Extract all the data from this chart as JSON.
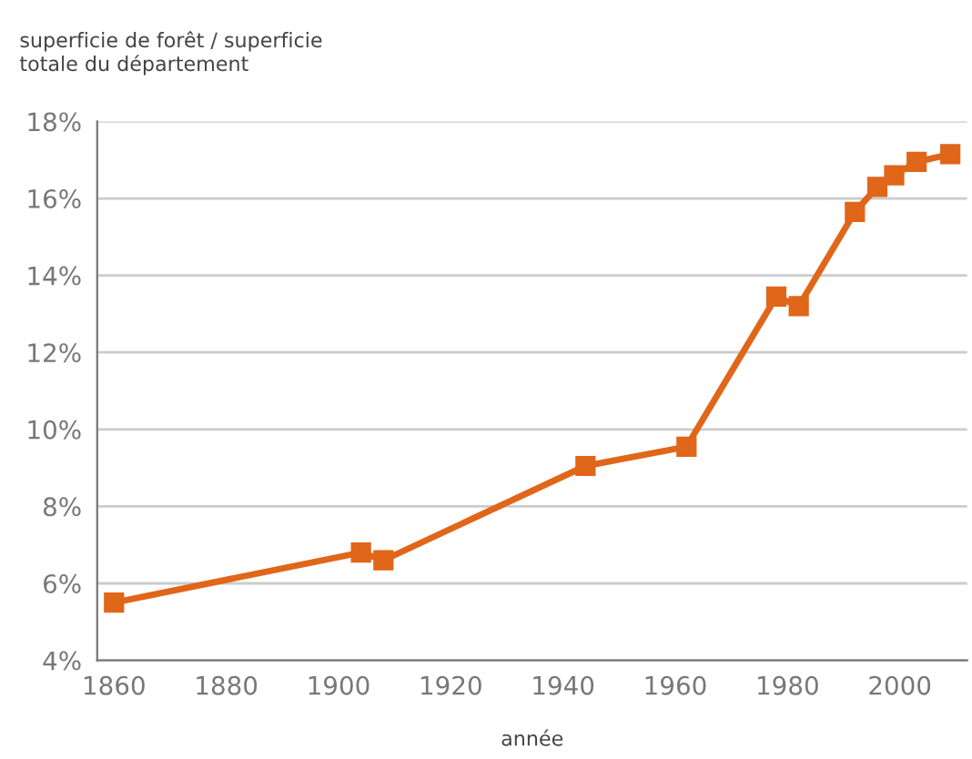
{
  "chart_data": {
    "type": "line",
    "ylabel": "superficie de forêt / superficie\ntotale du département",
    "xlabel": "année",
    "x": [
      1860,
      1904,
      1908,
      1944,
      1962,
      1978,
      1982,
      1992,
      1996,
      1999,
      2003,
      2009
    ],
    "series": [
      {
        "color": "#e0661a",
        "values": [
          5.5,
          6.8,
          6.6,
          9.05,
          9.55,
          13.45,
          13.2,
          15.65,
          16.3,
          16.6,
          16.95,
          17.15
        ]
      }
    ],
    "marker": "square",
    "line_style": "solid",
    "grid": "y",
    "legend": false,
    "xlim": [
      1857,
      2012
    ],
    "xticks": [
      1860,
      1880,
      1900,
      1920,
      1940,
      1960,
      1980,
      2000
    ],
    "ylim": [
      4,
      18
    ],
    "yticks": [
      {
        "value": 4,
        "label": "4%"
      },
      {
        "value": 6,
        "label": "6%"
      },
      {
        "value": 8,
        "label": "8%"
      },
      {
        "value": 10,
        "label": "10%"
      },
      {
        "value": 12,
        "label": "12%"
      },
      {
        "value": 14,
        "label": "14%"
      },
      {
        "value": 16,
        "label": "16%"
      },
      {
        "value": 18,
        "label": "18%"
      }
    ]
  }
}
